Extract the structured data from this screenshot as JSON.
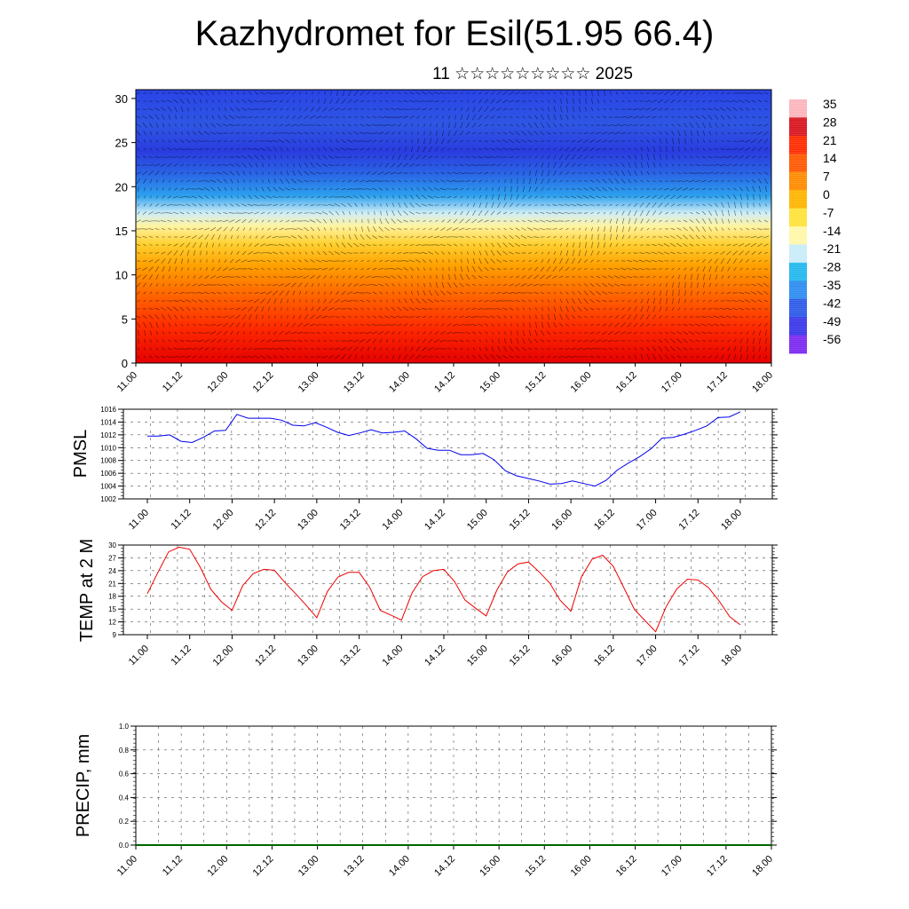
{
  "title": "Kazhydromet for Esil(51.95 66.4)",
  "subtitle": "11 ☆☆☆☆☆☆☆☆☆ 2025",
  "x_ticks": [
    "11.00",
    "11.12",
    "12.00",
    "12.12",
    "13.00",
    "13.12",
    "14.00",
    "14.12",
    "15.00",
    "15.12",
    "16.00",
    "16.12",
    "17.00",
    "17.12",
    "18.00"
  ],
  "colors": {
    "pmsl_line": "#0000ee",
    "temp_line": "#ee0000",
    "precip_line": "#006400",
    "grid": "#555555"
  },
  "chart_data": [
    {
      "type": "heatmap",
      "title": "",
      "xlabel": "",
      "ylabel": "",
      "ylim": [
        0,
        30
      ],
      "y_ticks": [
        0,
        5,
        10,
        15,
        20,
        25,
        30
      ],
      "overlay": "wind vectors",
      "colorbar": {
        "labels": [
          "35",
          "28",
          "21",
          "14",
          "7",
          "0",
          "-7",
          "-14",
          "-21",
          "-28",
          "-35",
          "-42",
          "-49",
          "-56"
        ],
        "colors": [
          "#fbb4bc",
          "#d8141e",
          "#ff2a00",
          "#ff5800",
          "#ff8a00",
          "#ffb400",
          "#ffe23a",
          "#fff7a8",
          "#c8ecf8",
          "#22b8ee",
          "#2c8cf0",
          "#2c5ae8",
          "#3a36e8",
          "#7a28f0"
        ]
      },
      "profile": [
        {
          "height": 0,
          "color": "#e60000"
        },
        {
          "height": 4,
          "color": "#ff2a00"
        },
        {
          "height": 8,
          "color": "#ff6a00"
        },
        {
          "height": 11,
          "color": "#ffa000"
        },
        {
          "height": 13.5,
          "color": "#ffd030"
        },
        {
          "height": 15.5,
          "color": "#fff3a0"
        },
        {
          "height": 17,
          "color": "#cfeef8"
        },
        {
          "height": 19,
          "color": "#2ca0ee"
        },
        {
          "height": 21.5,
          "color": "#2a64e6"
        },
        {
          "height": 24,
          "color": "#2a3ce0"
        },
        {
          "height": 27,
          "color": "#2e56e4"
        },
        {
          "height": 31,
          "color": "#2a44e8"
        }
      ]
    },
    {
      "type": "line",
      "ylabel": "PMSL",
      "ylim": [
        1002,
        1016
      ],
      "y_ticks": [
        "1002",
        "1004",
        "1006",
        "1008",
        "1010",
        "1012",
        "1014",
        "1016"
      ],
      "series": [
        {
          "values": [
            1011.8,
            1011.8,
            1012.0,
            1011.0,
            1010.8,
            1011.6,
            1012.6,
            1012.7,
            1015.2,
            1014.6,
            1014.6,
            1014.6,
            1014.3,
            1013.5,
            1013.4,
            1013.9,
            1013.2,
            1012.4,
            1011.9,
            1012.3,
            1012.8,
            1012.3,
            1012.4,
            1012.6,
            1011.4,
            1009.9,
            1009.6,
            1009.6,
            1008.9,
            1008.9,
            1009.1,
            1008.1,
            1006.4,
            1005.6,
            1005.2,
            1004.8,
            1004.3,
            1004.4,
            1004.8,
            1004.4,
            1004.0,
            1004.9,
            1006.5,
            1007.6,
            1008.6,
            1009.8,
            1011.5,
            1011.6,
            1012.1,
            1012.7,
            1013.4,
            1014.7,
            1014.8,
            1015.6
          ]
        }
      ]
    },
    {
      "type": "line",
      "ylabel": "TEMP at 2 M",
      "ylim": [
        9,
        30
      ],
      "y_ticks": [
        "9",
        "12",
        "15",
        "18",
        "21",
        "24",
        "27",
        "30"
      ],
      "series": [
        {
          "values": [
            18.6,
            23.6,
            28.4,
            29.5,
            29.0,
            24.8,
            19.6,
            16.7,
            14.7,
            20.5,
            23.3,
            24.3,
            24.1,
            21.2,
            18.6,
            15.9,
            13.0,
            19.1,
            22.5,
            23.6,
            23.6,
            20.1,
            14.7,
            13.6,
            12.4,
            18.8,
            22.6,
            24.0,
            24.3,
            21.5,
            17.1,
            15.2,
            13.4,
            19.4,
            23.7,
            25.6,
            26.0,
            23.7,
            21.1,
            17.0,
            14.5,
            22.6,
            26.7,
            27.6,
            25.0,
            20.0,
            14.9,
            12.3,
            9.7,
            15.6,
            19.7,
            22.0,
            21.8,
            20.0,
            16.9,
            13.2,
            11.3
          ]
        }
      ]
    },
    {
      "type": "line",
      "ylabel": "PRECIP, mm",
      "ylim": [
        0,
        1
      ],
      "y_ticks": [
        "0.0",
        "0.2",
        "0.4",
        "0.6",
        "0.8",
        "1.0"
      ],
      "series": [
        {
          "values": [
            0,
            0,
            0,
            0,
            0,
            0,
            0,
            0,
            0,
            0,
            0,
            0,
            0,
            0,
            0,
            0,
            0,
            0,
            0,
            0,
            0,
            0,
            0,
            0,
            0,
            0,
            0,
            0,
            0,
            0,
            0,
            0,
            0,
            0,
            0,
            0,
            0,
            0,
            0,
            0,
            0,
            0,
            0,
            0,
            0,
            0,
            0,
            0,
            0,
            0,
            0,
            0,
            0,
            0,
            0,
            0,
            0
          ]
        }
      ]
    }
  ]
}
